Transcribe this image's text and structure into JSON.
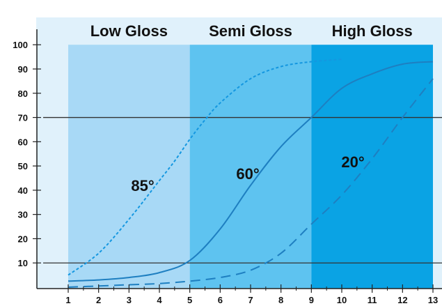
{
  "chart_data": {
    "type": "line",
    "title": "",
    "xlabel": "",
    "ylabel": "",
    "xlim": [
      0.2,
      13
    ],
    "ylim": [
      -10,
      107
    ],
    "x_ticks": [
      1,
      2,
      3,
      4,
      5,
      6,
      7,
      8,
      9,
      10,
      11,
      12,
      13
    ],
    "y_ticks": [
      10,
      20,
      30,
      40,
      50,
      60,
      70,
      80,
      90,
      100
    ],
    "grid": false,
    "regions": [
      {
        "label": "Low Gloss",
        "x_start": 1,
        "x_end": 5,
        "color": "#a8d9f6"
      },
      {
        "label": "Semi Gloss",
        "x_start": 5,
        "x_end": 9,
        "color": "#5ec3f0"
      },
      {
        "label": "High Gloss",
        "x_start": 9,
        "x_end": 13,
        "color": "#0aa3e4"
      }
    ],
    "reference_lines": [
      70,
      10
    ],
    "series": [
      {
        "name": "85°",
        "style": "dotted",
        "x": [
          1,
          2,
          3,
          4,
          4.5,
          5,
          5.5,
          6,
          7,
          8,
          9,
          10
        ],
        "y": [
          5,
          14,
          28,
          44,
          52,
          61,
          69,
          76,
          86,
          91,
          93,
          94
        ]
      },
      {
        "name": "60°",
        "style": "solid",
        "x": [
          1,
          2,
          3,
          4,
          5,
          6,
          7,
          8,
          9,
          10,
          11,
          12,
          13
        ],
        "y": [
          2.5,
          3,
          4,
          6,
          11,
          24,
          42,
          58,
          70,
          82,
          88,
          92,
          93
        ]
      },
      {
        "name": "20°",
        "style": "dashed",
        "x": [
          1,
          2,
          3,
          4,
          5,
          6,
          7,
          8,
          9,
          10,
          11,
          12,
          13
        ],
        "y": [
          0,
          0.5,
          1,
          1.5,
          2.5,
          4,
          7,
          14,
          26,
          38,
          53,
          70,
          86
        ]
      }
    ]
  },
  "colors": {
    "plot_background": "#e0f1fb",
    "curve": "#1e7fc1",
    "dotted_curve": "#1497e0",
    "axis": "#222222"
  }
}
